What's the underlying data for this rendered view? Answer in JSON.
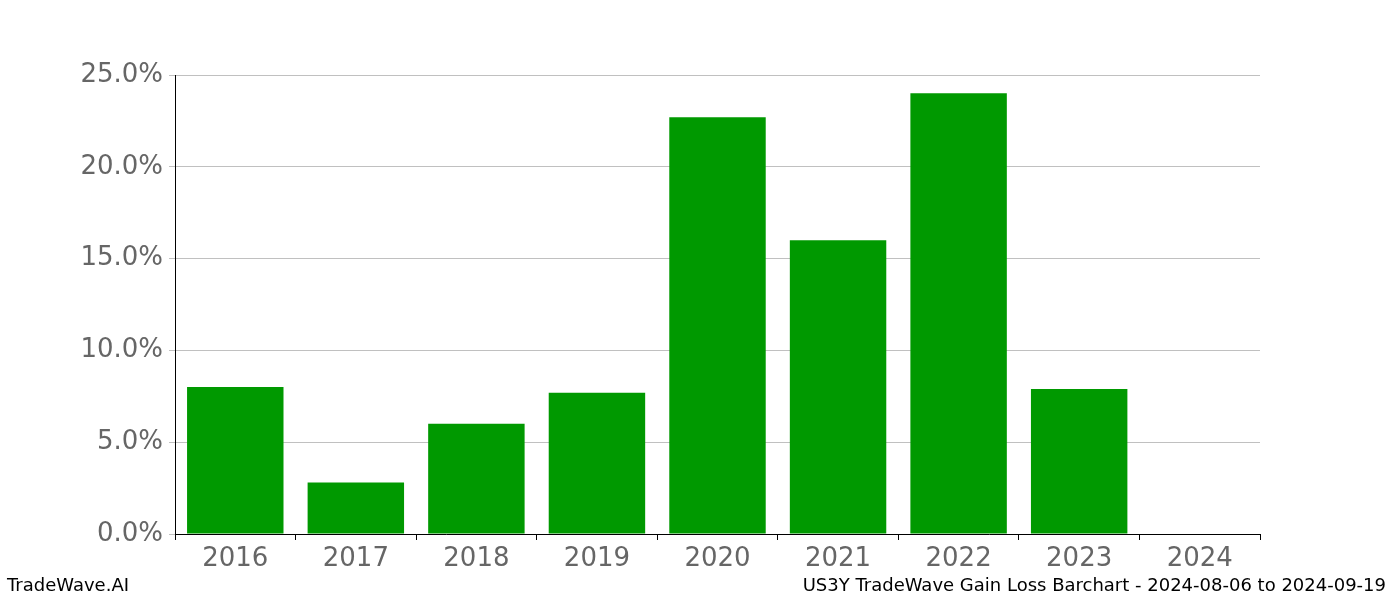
{
  "chart_data": {
    "type": "bar",
    "annotations": [
      "TradeWave.AI",
      "US3Y TradeWave Gain Loss Barchart - 2024-08-06 to 2024-09-19"
    ],
    "categories": [
      "2016",
      "2017",
      "2018",
      "2019",
      "2020",
      "2021",
      "2022",
      "2023",
      "2024"
    ],
    "values": [
      8.0,
      2.8,
      6.0,
      7.7,
      22.7,
      16.0,
      24.0,
      7.9,
      0
    ],
    "color": "#009900",
    "ylim": [
      0,
      25
    ],
    "yticks": [
      {
        "value": 0,
        "label": "0.0%"
      },
      {
        "value": 5,
        "label": "5.0%"
      },
      {
        "value": 10,
        "label": "10.0%"
      },
      {
        "value": 15,
        "label": "15.0%"
      },
      {
        "value": 20,
        "label": "20.0%"
      },
      {
        "value": 25,
        "label": "25.0%"
      }
    ],
    "grid": true
  }
}
